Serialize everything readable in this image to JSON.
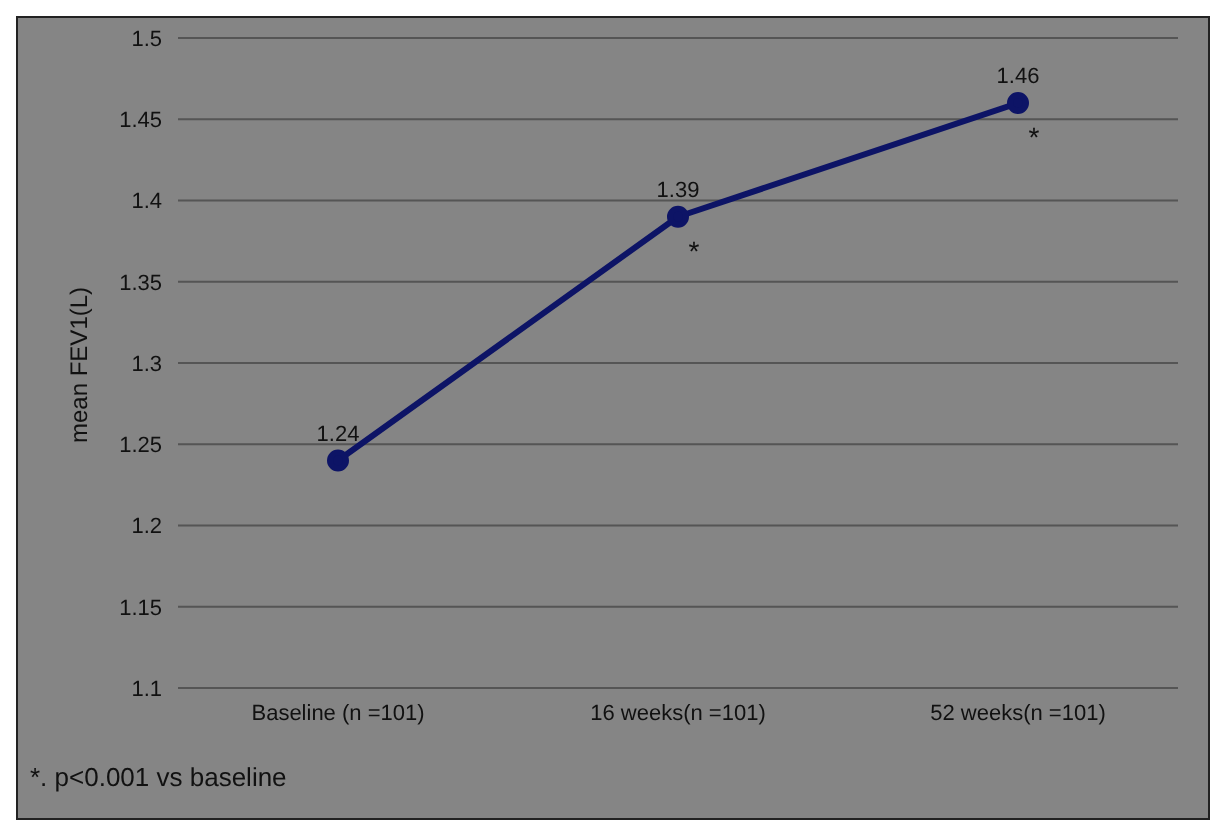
{
  "chart_data": {
    "type": "line",
    "ylabel": "mean FEV1(L)",
    "categories": [
      "Baseline (n =101)",
      "16 weeks(n =101)",
      "52 weeks(n =101)"
    ],
    "series": [
      {
        "color": "#0d1466",
        "values": [
          1.24,
          1.39,
          1.46
        ]
      }
    ],
    "ylim": [
      1.1,
      1.5
    ],
    "yticks": [
      1.1,
      1.15,
      1.2,
      1.25,
      1.3,
      1.35,
      1.4,
      1.45,
      1.5
    ],
    "grid": "y",
    "marker": "circle",
    "line_style": "solid",
    "legend": false,
    "data_labels": true,
    "annotations": [
      {
        "text": "*",
        "x": "16 weeks(n =101)",
        "y": 1.39
      },
      {
        "text": "*",
        "x": "52 weeks(n =101)",
        "y": 1.46
      },
      "*. p<0.001 vs baseline"
    ]
  }
}
